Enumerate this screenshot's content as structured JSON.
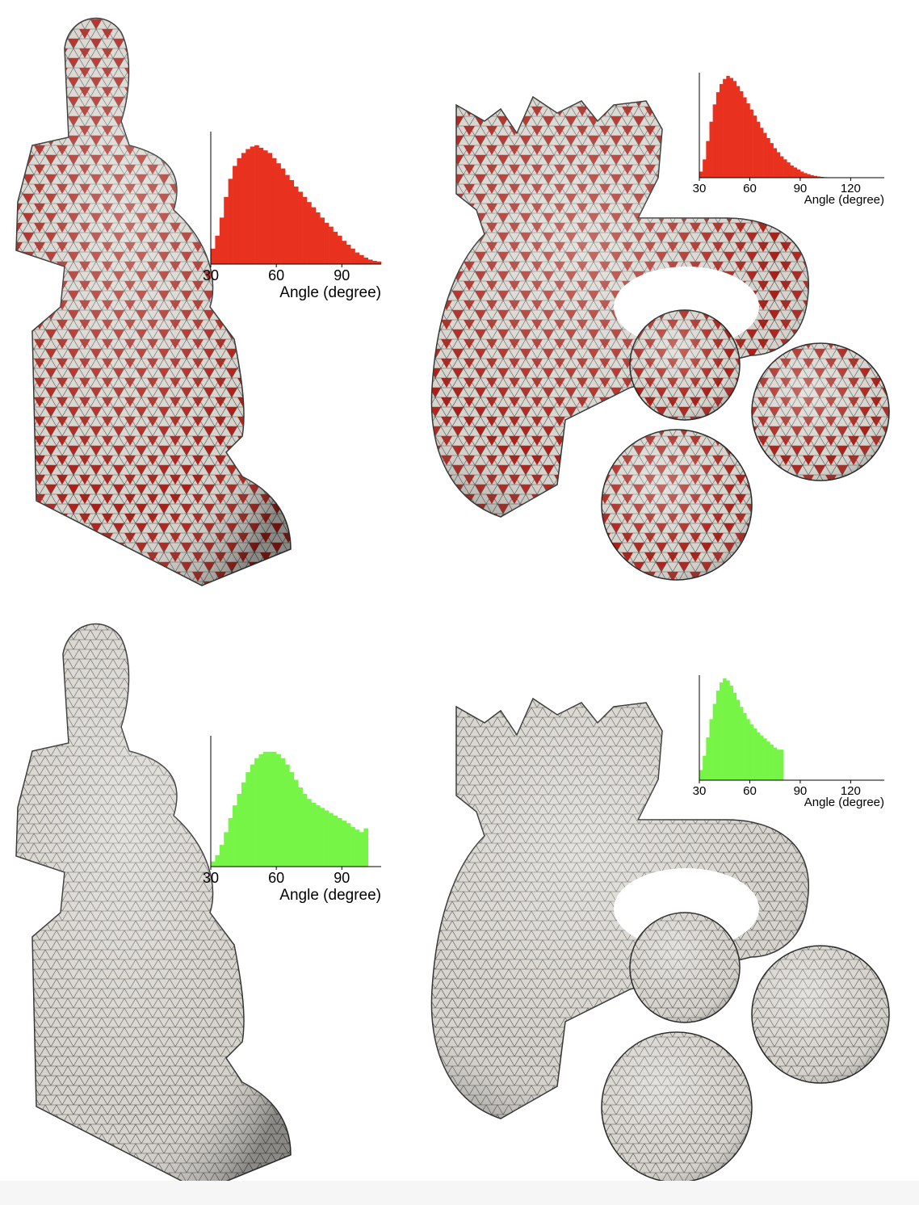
{
  "figure": {
    "panels": [
      {
        "id": "statue-before",
        "model": "seated-statue",
        "mesh_color": "#d9d6cf",
        "highlight_color": "#b81e16",
        "highlighted": true
      },
      {
        "id": "elephant-before",
        "model": "elephant-toy",
        "mesh_color": "#d9d6cf",
        "highlight_color": "#b81e16",
        "highlighted": true
      },
      {
        "id": "statue-after",
        "model": "seated-statue",
        "mesh_color": "#d4d2cc",
        "highlighted": false
      },
      {
        "id": "elephant-after",
        "model": "elephant-toy",
        "mesh_color": "#d4d2cc",
        "highlighted": false
      }
    ]
  },
  "chart_data": [
    {
      "type": "bar",
      "id": "hist-statue-before",
      "color": "#e8321f",
      "xlabel": "Angle (degree)",
      "xticks": [
        30,
        60,
        90
      ],
      "xlim": [
        30,
        108
      ],
      "bin_start": 30,
      "bin_width": 2,
      "values": [
        0.12,
        0.22,
        0.36,
        0.52,
        0.66,
        0.76,
        0.82,
        0.86,
        0.89,
        0.91,
        0.92,
        0.9,
        0.88,
        0.86,
        0.82,
        0.78,
        0.74,
        0.69,
        0.65,
        0.6,
        0.56,
        0.52,
        0.48,
        0.44,
        0.4,
        0.36,
        0.32,
        0.29,
        0.25,
        0.22,
        0.18,
        0.15,
        0.12,
        0.09,
        0.07,
        0.05,
        0.035,
        0.025,
        0.02
      ]
    },
    {
      "type": "bar",
      "id": "hist-elephant-before",
      "color": "#e8321f",
      "xlabel": "Angle (degree)",
      "xticks": [
        30,
        60,
        90,
        120
      ],
      "xlim": [
        30,
        140
      ],
      "bin_start": 30,
      "bin_width": 2,
      "values": [
        0.06,
        0.18,
        0.36,
        0.55,
        0.72,
        0.84,
        0.92,
        0.97,
        1.0,
        0.98,
        0.95,
        0.9,
        0.85,
        0.79,
        0.73,
        0.67,
        0.61,
        0.55,
        0.49,
        0.44,
        0.39,
        0.34,
        0.29,
        0.25,
        0.21,
        0.18,
        0.15,
        0.12,
        0.1,
        0.08,
        0.06,
        0.045,
        0.035,
        0.025,
        0.018,
        0.012,
        0.008,
        0.005,
        0.003,
        0.002
      ]
    },
    {
      "type": "bar",
      "id": "hist-statue-after",
      "color": "#76f546",
      "xlabel": "Angle (degree)",
      "xticks": [
        30,
        60,
        90
      ],
      "xlim": [
        30,
        108
      ],
      "bin_start": 30,
      "bin_width": 2,
      "values": [
        0.04,
        0.09,
        0.17,
        0.27,
        0.38,
        0.48,
        0.57,
        0.66,
        0.74,
        0.8,
        0.85,
        0.88,
        0.9,
        0.9,
        0.9,
        0.88,
        0.85,
        0.8,
        0.74,
        0.68,
        0.62,
        0.57,
        0.53,
        0.5,
        0.48,
        0.46,
        0.44,
        0.42,
        0.4,
        0.38,
        0.36,
        0.34,
        0.31,
        0.29,
        0.27,
        0.3
      ]
    },
    {
      "type": "bar",
      "id": "hist-elephant-after",
      "color": "#76f546",
      "xlabel": "Angle (degree)",
      "xticks": [
        30,
        60,
        90,
        120
      ],
      "xlim": [
        30,
        140
      ],
      "bin_start": 30,
      "bin_width": 2,
      "values": [
        0.1,
        0.24,
        0.42,
        0.6,
        0.75,
        0.88,
        0.96,
        1.0,
        0.98,
        0.93,
        0.86,
        0.79,
        0.72,
        0.66,
        0.6,
        0.55,
        0.51,
        0.47,
        0.44,
        0.41,
        0.38,
        0.35,
        0.32,
        0.3,
        0.3
      ]
    }
  ]
}
